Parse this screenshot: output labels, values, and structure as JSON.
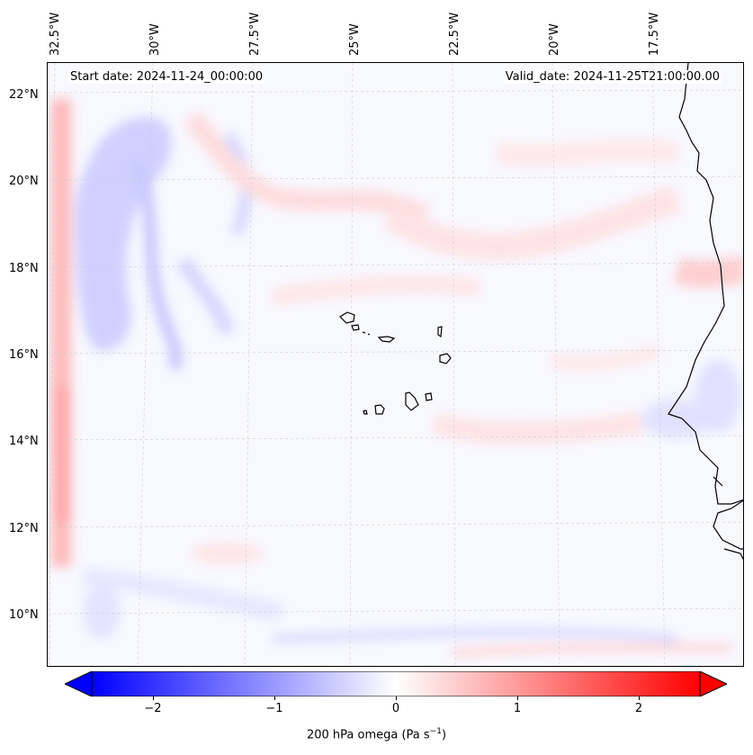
{
  "header": {
    "start_date": "Start date: 2024-11-24_00:00:00",
    "valid_date": "Valid_date: 2024-11-25T21:00:00.00"
  },
  "axes": {
    "lon_labels": [
      "32.5°W",
      "30°W",
      "27.5°W",
      "25°W",
      "22.5°W",
      "20°W",
      "17.5°W"
    ],
    "lat_labels": [
      "22°N",
      "20°N",
      "18°N",
      "16°N",
      "14°N",
      "12°N",
      "10°N"
    ]
  },
  "colorbar": {
    "ticks": [
      "−2",
      "−1",
      "0",
      "1",
      "2"
    ],
    "tick_values": [
      -2,
      -1,
      0,
      1,
      2
    ],
    "range": [
      -2.5,
      2.5
    ],
    "label_prefix": "200 hPa omega (Pa s",
    "label_exp": "−1",
    "label_suffix": ")",
    "low_color": "#0000ff",
    "mid_color": "#ffffff",
    "high_color": "#ff0000"
  },
  "map": {
    "features": [
      "Cape Verde islands",
      "West African coastline"
    ]
  }
}
